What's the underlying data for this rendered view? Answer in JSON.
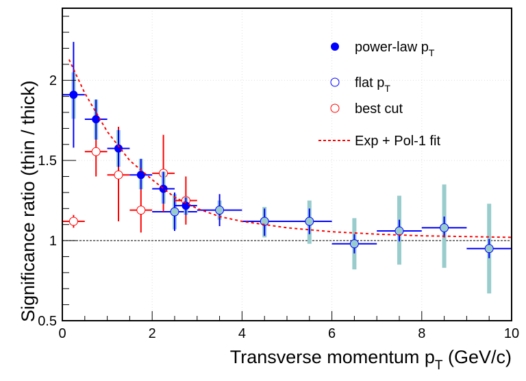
{
  "chart_data": {
    "type": "scatter",
    "xlabel": "Transverse momentum p",
    "xlabel_sub": "T",
    "xlabel_unit": " (GeV/c)",
    "ylabel": "Significance ratio (thin / thick)",
    "xlim": [
      0,
      10
    ],
    "ylim": [
      0.5,
      2.45
    ],
    "xticks": [
      "0",
      "2",
      "4",
      "6",
      "8",
      "10"
    ],
    "yticks": [
      "0.5",
      "1",
      "1.5",
      "2"
    ],
    "grid": "dotted at major ticks",
    "reference_line": 1,
    "legend_position": "top-right",
    "colors": {
      "blue": "#0000ff",
      "red": "#ff0000",
      "sys_band": "#99cccc",
      "grid": "#dddddd"
    },
    "series": [
      {
        "name": "flat p",
        "name_sub": "T",
        "marker": "open-circle-blue",
        "points": [
          {
            "x": 2.5,
            "xerr": 0.5,
            "y": 1.18,
            "stat": [
              1.06,
              1.3
            ],
            "sys": [
              1.07,
              1.29
            ]
          },
          {
            "x": 3.5,
            "xerr": 0.5,
            "y": 1.19,
            "stat": [
              1.09,
              1.29
            ],
            "sys": [
              1.13,
              1.25
            ]
          },
          {
            "x": 4.5,
            "xerr": 0.5,
            "y": 1.12,
            "stat": [
              1.03,
              1.2
            ],
            "sys": [
              1.02,
              1.21
            ]
          },
          {
            "x": 5.5,
            "xerr": 0.5,
            "y": 1.12,
            "stat": [
              1.04,
              1.2
            ],
            "sys": [
              0.98,
              1.25
            ]
          },
          {
            "x": 6.5,
            "xerr": 0.5,
            "y": 0.98,
            "stat": [
              0.92,
              1.04
            ],
            "sys": [
              0.82,
              1.14
            ]
          },
          {
            "x": 7.5,
            "xerr": 0.5,
            "y": 1.06,
            "stat": [
              0.995,
              1.13
            ],
            "sys": [
              0.85,
              1.28
            ]
          },
          {
            "x": 8.5,
            "xerr": 0.5,
            "y": 1.08,
            "stat": [
              1.02,
              1.15
            ],
            "sys": [
              0.83,
              1.35
            ]
          },
          {
            "x": 9.5,
            "xerr": 0.5,
            "y": 0.95,
            "stat": [
              0.89,
              1.01
            ],
            "sys": [
              0.67,
              1.23
            ]
          }
        ]
      },
      {
        "name": "best cut",
        "marker": "open-circle-red",
        "points": [
          {
            "x": 0.25,
            "xerr": 0.25,
            "y": 1.12,
            "stat": [
              1.08,
              1.16
            ]
          },
          {
            "x": 0.75,
            "xerr": 0.25,
            "y": 1.555,
            "stat": [
              1.4,
              1.71
            ]
          },
          {
            "x": 1.25,
            "xerr": 0.25,
            "y": 1.41,
            "stat": [
              1.12,
              1.71
            ]
          },
          {
            "x": 1.75,
            "xerr": 0.25,
            "y": 1.19,
            "stat": [
              1.05,
              1.33
            ]
          },
          {
            "x": 2.25,
            "xerr": 0.25,
            "y": 1.42,
            "stat": [
              1.18,
              1.66
            ]
          },
          {
            "x": 2.75,
            "xerr": 0.25,
            "y": 1.25,
            "stat": [
              1.1,
              1.4
            ]
          }
        ]
      },
      {
        "name": "power-law p",
        "name_sub": "T",
        "marker": "filled-circle-blue",
        "points": [
          {
            "x": 0.25,
            "xerr": 0.25,
            "y": 1.91,
            "stat": [
              1.58,
              2.24
            ],
            "sys": [
              1.76,
              2.05
            ]
          },
          {
            "x": 0.75,
            "xerr": 0.25,
            "y": 1.757,
            "stat": [
              1.63,
              1.88
            ],
            "sys": [
              1.63,
              1.88
            ]
          },
          {
            "x": 1.25,
            "xerr": 0.25,
            "y": 1.575,
            "stat": [
              1.46,
              1.69
            ],
            "sys": [
              1.46,
              1.69
            ]
          },
          {
            "x": 1.75,
            "xerr": 0.25,
            "y": 1.41,
            "stat": [
              1.32,
              1.51
            ],
            "sys": [
              1.32,
              1.51
            ]
          },
          {
            "x": 2.25,
            "xerr": 0.25,
            "y": 1.323,
            "stat": [
              1.23,
              1.43
            ],
            "sys": [
              1.23,
              1.43
            ]
          },
          {
            "x": 2.75,
            "xerr": 0.25,
            "y": 1.218,
            "stat": [
              1.16,
              1.27
            ],
            "sys": [
              1.16,
              1.27
            ]
          }
        ]
      },
      {
        "name": "Exp + Pol-1 fit",
        "marker": "dashed-line-red",
        "x": [
          0.15,
          0.5,
          1,
          1.5,
          2,
          2.5,
          3,
          3.5,
          4,
          5,
          6,
          7,
          8,
          9,
          10
        ],
        "y": [
          2.13,
          1.92,
          1.68,
          1.5,
          1.38,
          1.27,
          1.2,
          1.15,
          1.12,
          1.08,
          1.055,
          1.04,
          1.03,
          1.025,
          1.02
        ]
      }
    ]
  }
}
